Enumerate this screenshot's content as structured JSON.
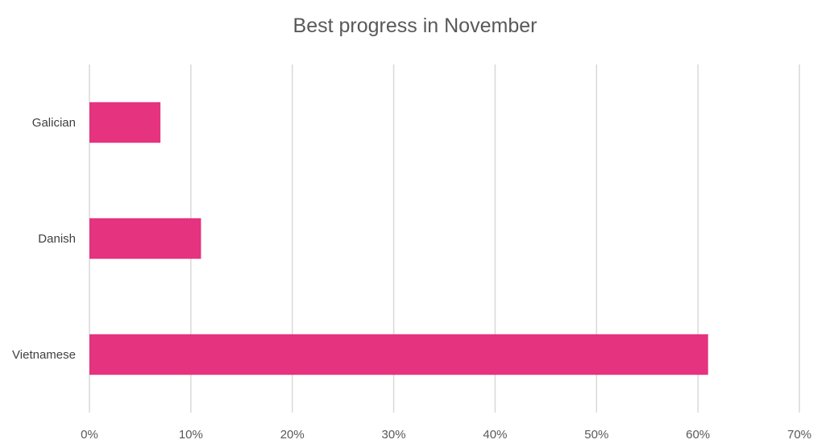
{
  "chart_data": {
    "type": "bar",
    "orientation": "horizontal",
    "title": "Best progress in November",
    "categories": [
      "Galician",
      "Danish",
      "Vietnamese"
    ],
    "values": [
      7,
      11,
      61
    ],
    "unit": "%",
    "xlabel": "",
    "ylabel": "",
    "xlim": [
      0,
      70
    ],
    "x_ticks": [
      "0%",
      "10%",
      "20%",
      "30%",
      "40%",
      "50%",
      "60%",
      "70%"
    ],
    "grid": "vertical",
    "legend": "none",
    "bar_color": "#E5337F",
    "grid_color": "#D9D9D9"
  }
}
